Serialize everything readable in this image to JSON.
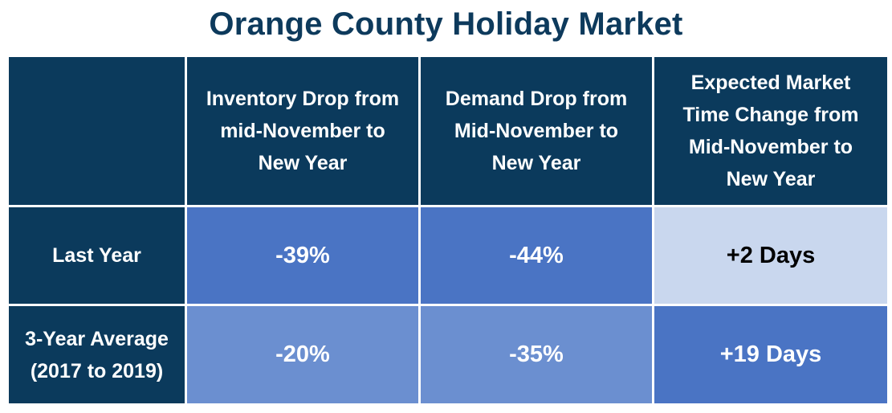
{
  "chart_data": {
    "type": "table",
    "title": "Orange County Holiday Market",
    "columns": [
      "",
      "Inventory Drop from mid-November to New Year",
      "Demand Drop from Mid-November to New Year",
      "Expected Market Time Change from Mid-November to New Year"
    ],
    "column_lines": [
      [],
      [
        "Inventory Drop from",
        "mid-November to",
        "New Year"
      ],
      [
        "Demand Drop from",
        "Mid-November to",
        "New Year"
      ],
      [
        "Expected Market",
        "Time Change from",
        "Mid-November to",
        "New Year"
      ]
    ],
    "rows": [
      {
        "label_lines": [
          "Last Year"
        ],
        "inventory_drop": "-39%",
        "demand_drop": "-44%",
        "market_time_change": "+2 Days"
      },
      {
        "label_lines": [
          "3-Year Average",
          "(2017 to 2019)"
        ],
        "inventory_drop": "-20%",
        "demand_drop": "-35%",
        "market_time_change": "+19 Days"
      }
    ],
    "numeric_values": {
      "inventory_drop_pct": [
        -39,
        -20
      ],
      "demand_drop_pct": [
        -44,
        -35
      ],
      "market_time_change_days": [
        2,
        19
      ]
    }
  },
  "colors": {
    "title": "#0d3a5c",
    "header_bg": "#0b3a5c",
    "cell_mid": "#4a74c4",
    "cell_light": "#6b8fd0",
    "cell_pale": "#c9d7ee"
  }
}
